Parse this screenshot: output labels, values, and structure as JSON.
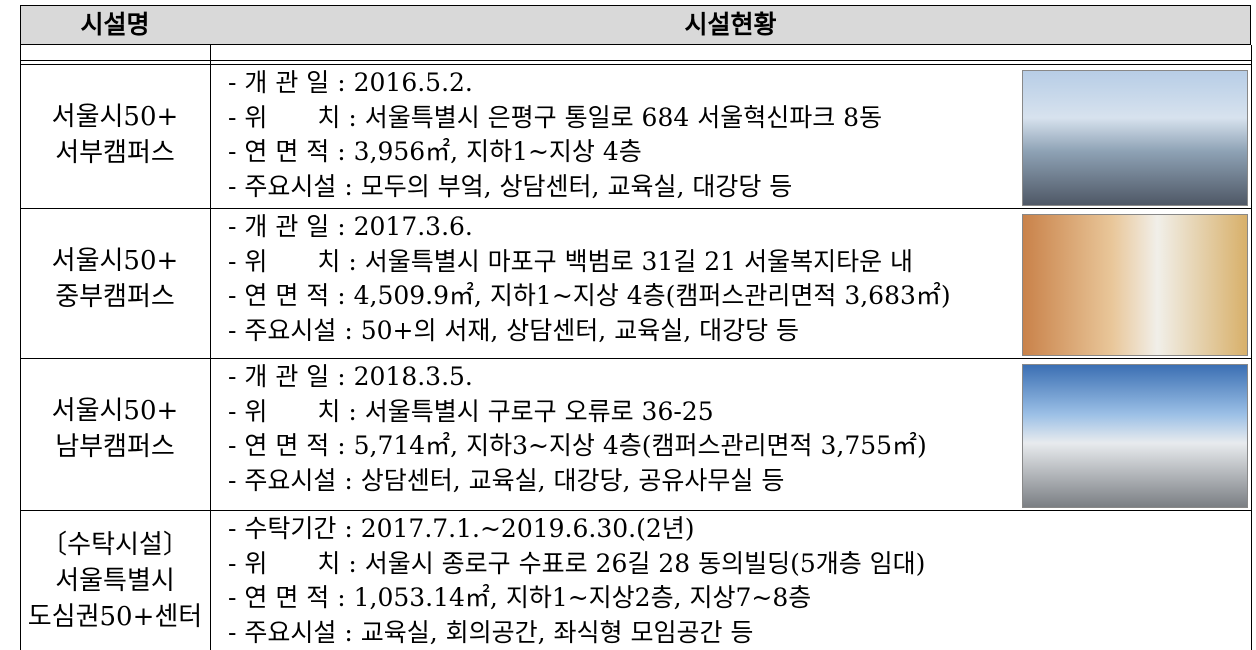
{
  "header": {
    "name": "시설명",
    "status": "시설현황"
  },
  "rows": [
    {
      "name": [
        "서울시50+",
        "서부캠퍼스"
      ],
      "details": [
        "- 개 관 일 : 2016.5.2.",
        "- 위　　치 : 서울특별시 은평구 통일로 684 서울혁신파크 8동",
        "- 연 면 적 : 3,956㎡, 지하1~지상 4층",
        "- 주요시설 : 모두의 부엌, 상담센터, 교육실, 대강당 등"
      ]
    },
    {
      "name": [
        "서울시50+",
        "중부캠퍼스"
      ],
      "details": [
        "- 개 관 일 : 2017.3.6.",
        "- 위　　치 : 서울특별시 마포구 백범로 31길 21 서울복지타운 내",
        "- 연 면 적 : 4,509.9㎡, 지하1~지상 4층(캠퍼스관리면적 3,683㎡)",
        "- 주요시설 : 50+의 서재, 상담센터, 교육실, 대강당 등"
      ]
    },
    {
      "name": [
        "서울시50+",
        "남부캠퍼스"
      ],
      "details": [
        "- 개 관 일 : 2018.3.5.",
        "- 위　　치 : 서울특별시 구로구 오류로 36-25",
        "- 연 면 적 : 5,714㎡, 지하3~지상 4층(캠퍼스관리면적 3,755㎡)",
        "- 주요시설 : 상담센터, 교육실, 대강당, 공유사무실 등"
      ]
    },
    {
      "name": [
        "〔수탁시설〕",
        "서울특별시",
        "도심권50+센터"
      ],
      "details": [
        "- 수탁기간 : 2017.7.1.~2019.6.30.(2년)",
        "- 위　　치 : 서울시 종로구 수표로 26길 28 동의빌딩(5개층 임대)",
        "- 연 면 적 : 1,053.14㎡, 지하1~지상2층, 지상7~8층",
        "- 주요시설 : 교육실, 회의공간, 좌식형 모임공간 등"
      ]
    }
  ]
}
